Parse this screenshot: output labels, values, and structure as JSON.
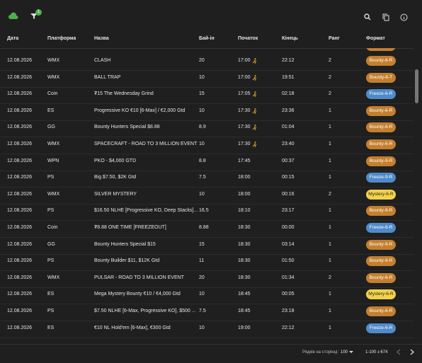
{
  "toolbar": {
    "filter_count": "1"
  },
  "table": {
    "columns": [
      "Дата",
      "Платформа",
      "Назва",
      "Бай-ін",
      "Початок",
      "Кінець",
      "Ранг",
      "Формат"
    ],
    "rows": [
      [
        "12.08.2026",
        "WMX",
        "CLASH",
        "20",
        "17:00",
        "22:12",
        "2",
        "Bounty-6-R"
      ],
      [
        "12.08.2026",
        "WMX",
        "BALL TRAP",
        "10",
        "17:00",
        "19:51",
        "2",
        "Bounty-6-T"
      ],
      [
        "12.08.2026",
        "Coin",
        "₮15 The Wednesday Grind",
        "15",
        "17:05",
        "02:18",
        "2",
        "Freeze-6-R"
      ],
      [
        "12.08.2026",
        "ES",
        "Progressive KO €10 [6-Max] / €2,000 Gtd",
        "10",
        "17:30",
        "23:36",
        "1",
        "Bounty-6-R"
      ],
      [
        "12.08.2026",
        "GG",
        "Bounty Hunters Special $8.88",
        "8.9",
        "17:30",
        "01:04",
        "1",
        "Bounty-6-R"
      ],
      [
        "12.08.2026",
        "WMX",
        "SPACECRAFT - ROAD TO 3 MILLION EVENT",
        "10",
        "17:30",
        "23:40",
        "1",
        "Bounty-6-R"
      ],
      [
        "12.08.2026",
        "WPN",
        "PKO - $4,000 GTD",
        "8.8",
        "17:45",
        "00:37",
        "1",
        "Bounty-9-R"
      ],
      [
        "12.08.2026",
        "PS",
        "Big $7.50, $2K Gtd",
        "7.5",
        "18:00",
        "00:15",
        "1",
        "Freeze-9-R"
      ],
      [
        "12.08.2026",
        "WMX",
        "SILVER MYSTERY",
        "10",
        "18:00",
        "00:16",
        "2",
        "Mystery-6-R"
      ],
      [
        "12.08.2026",
        "PS",
        "$16.50 NLHE [Progressive KO, Deep Stacks]...",
        "16.5",
        "18:10",
        "23:17",
        "1",
        "Bounty-9-R"
      ],
      [
        "12.08.2026",
        "Coin",
        "₮8.88 ONE TIME [FREEZEOUT]",
        "8.88",
        "18:30",
        "00:00",
        "1",
        "Freeze-6-R"
      ],
      [
        "12.08.2026",
        "GG",
        "Bounty Hunters Special $15",
        "15",
        "18:30",
        "03:14",
        "1",
        "Bounty-9-R"
      ],
      [
        "12.08.2026",
        "PS",
        "Bounty Builder $11, $12K Gtd",
        "11",
        "18:30",
        "01:50",
        "1",
        "Bounty-9-R"
      ],
      [
        "12.08.2026",
        "WMX",
        "PULSAR - ROAD TO 3 MILLION EVENT",
        "20",
        "18:30",
        "01:34",
        "2",
        "Bounty-6-R"
      ],
      [
        "12.08.2026",
        "ES",
        "Mega Mystery Bounty €10 / €4,000 Gtd",
        "10",
        "18:45",
        "00:05",
        "1",
        "Mystery-6-R"
      ],
      [
        "12.08.2026",
        "PS",
        "$7.50 NLHE [6-Max, Progressive KO], $500 ...",
        "7.5",
        "18:45",
        "23:18",
        "1",
        "Bounty-6-R"
      ],
      [
        "12.08.2026",
        "ES",
        "€10 NL Hold'em [6-Max], €300 Gtd",
        "10",
        "19:00",
        "22:12",
        "1",
        "Freeze-6-R"
      ]
    ],
    "in_progress": [
      true,
      true,
      true,
      true,
      true,
      true,
      false,
      false,
      false,
      false,
      false,
      false,
      false,
      false,
      false,
      false,
      false
    ]
  },
  "footer": {
    "rows_per_page_label": "Рядків на сторінці:",
    "rows_per_page": "100",
    "range": "1-100 з 674"
  }
}
